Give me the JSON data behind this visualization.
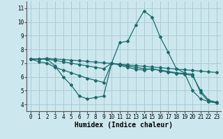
{
  "xlabel": "Humidex (Indice chaleur)",
  "ylabel": "",
  "bg_color": "#cce8ee",
  "grid_color": "#aaccd4",
  "line_color": "#1a6b6b",
  "x": [
    0,
    1,
    2,
    3,
    4,
    5,
    6,
    7,
    8,
    9,
    10,
    11,
    12,
    13,
    14,
    15,
    16,
    17,
    18,
    19,
    20,
    21,
    22,
    23
  ],
  "line1": [
    7.3,
    7.3,
    7.35,
    7.3,
    7.27,
    7.22,
    7.18,
    7.13,
    7.08,
    7.03,
    6.97,
    6.92,
    6.87,
    6.82,
    6.77,
    6.72,
    6.67,
    6.62,
    6.57,
    6.52,
    6.47,
    6.42,
    6.37,
    6.32
  ],
  "line2": [
    7.3,
    7.3,
    7.3,
    6.8,
    6.0,
    5.4,
    4.6,
    4.4,
    4.5,
    4.6,
    7.0,
    8.5,
    8.6,
    9.8,
    10.8,
    10.35,
    8.9,
    7.8,
    6.6,
    6.3,
    5.0,
    4.4,
    4.2,
    4.15
  ],
  "line3": [
    7.3,
    7.1,
    7.0,
    6.7,
    6.5,
    6.3,
    6.1,
    5.9,
    5.75,
    5.6,
    7.0,
    6.85,
    6.7,
    6.55,
    6.5,
    6.6,
    6.45,
    6.35,
    6.25,
    6.2,
    6.1,
    5.0,
    4.3,
    4.15
  ],
  "line4": [
    7.3,
    7.3,
    7.3,
    7.2,
    7.1,
    7.0,
    6.9,
    6.8,
    6.7,
    6.6,
    7.0,
    6.9,
    6.8,
    6.7,
    6.6,
    6.55,
    6.5,
    6.4,
    6.3,
    6.25,
    6.2,
    4.85,
    4.2,
    4.1
  ],
  "ylim": [
    3.5,
    11.5
  ],
  "xlim": [
    -0.5,
    23.5
  ],
  "yticks": [
    4,
    5,
    6,
    7,
    8,
    9,
    10,
    11
  ],
  "xticks": [
    0,
    1,
    2,
    3,
    4,
    5,
    6,
    7,
    8,
    9,
    10,
    11,
    12,
    13,
    14,
    15,
    16,
    17,
    18,
    19,
    20,
    21,
    22,
    23
  ],
  "tick_fontsize": 5.5,
  "xlabel_fontsize": 7
}
